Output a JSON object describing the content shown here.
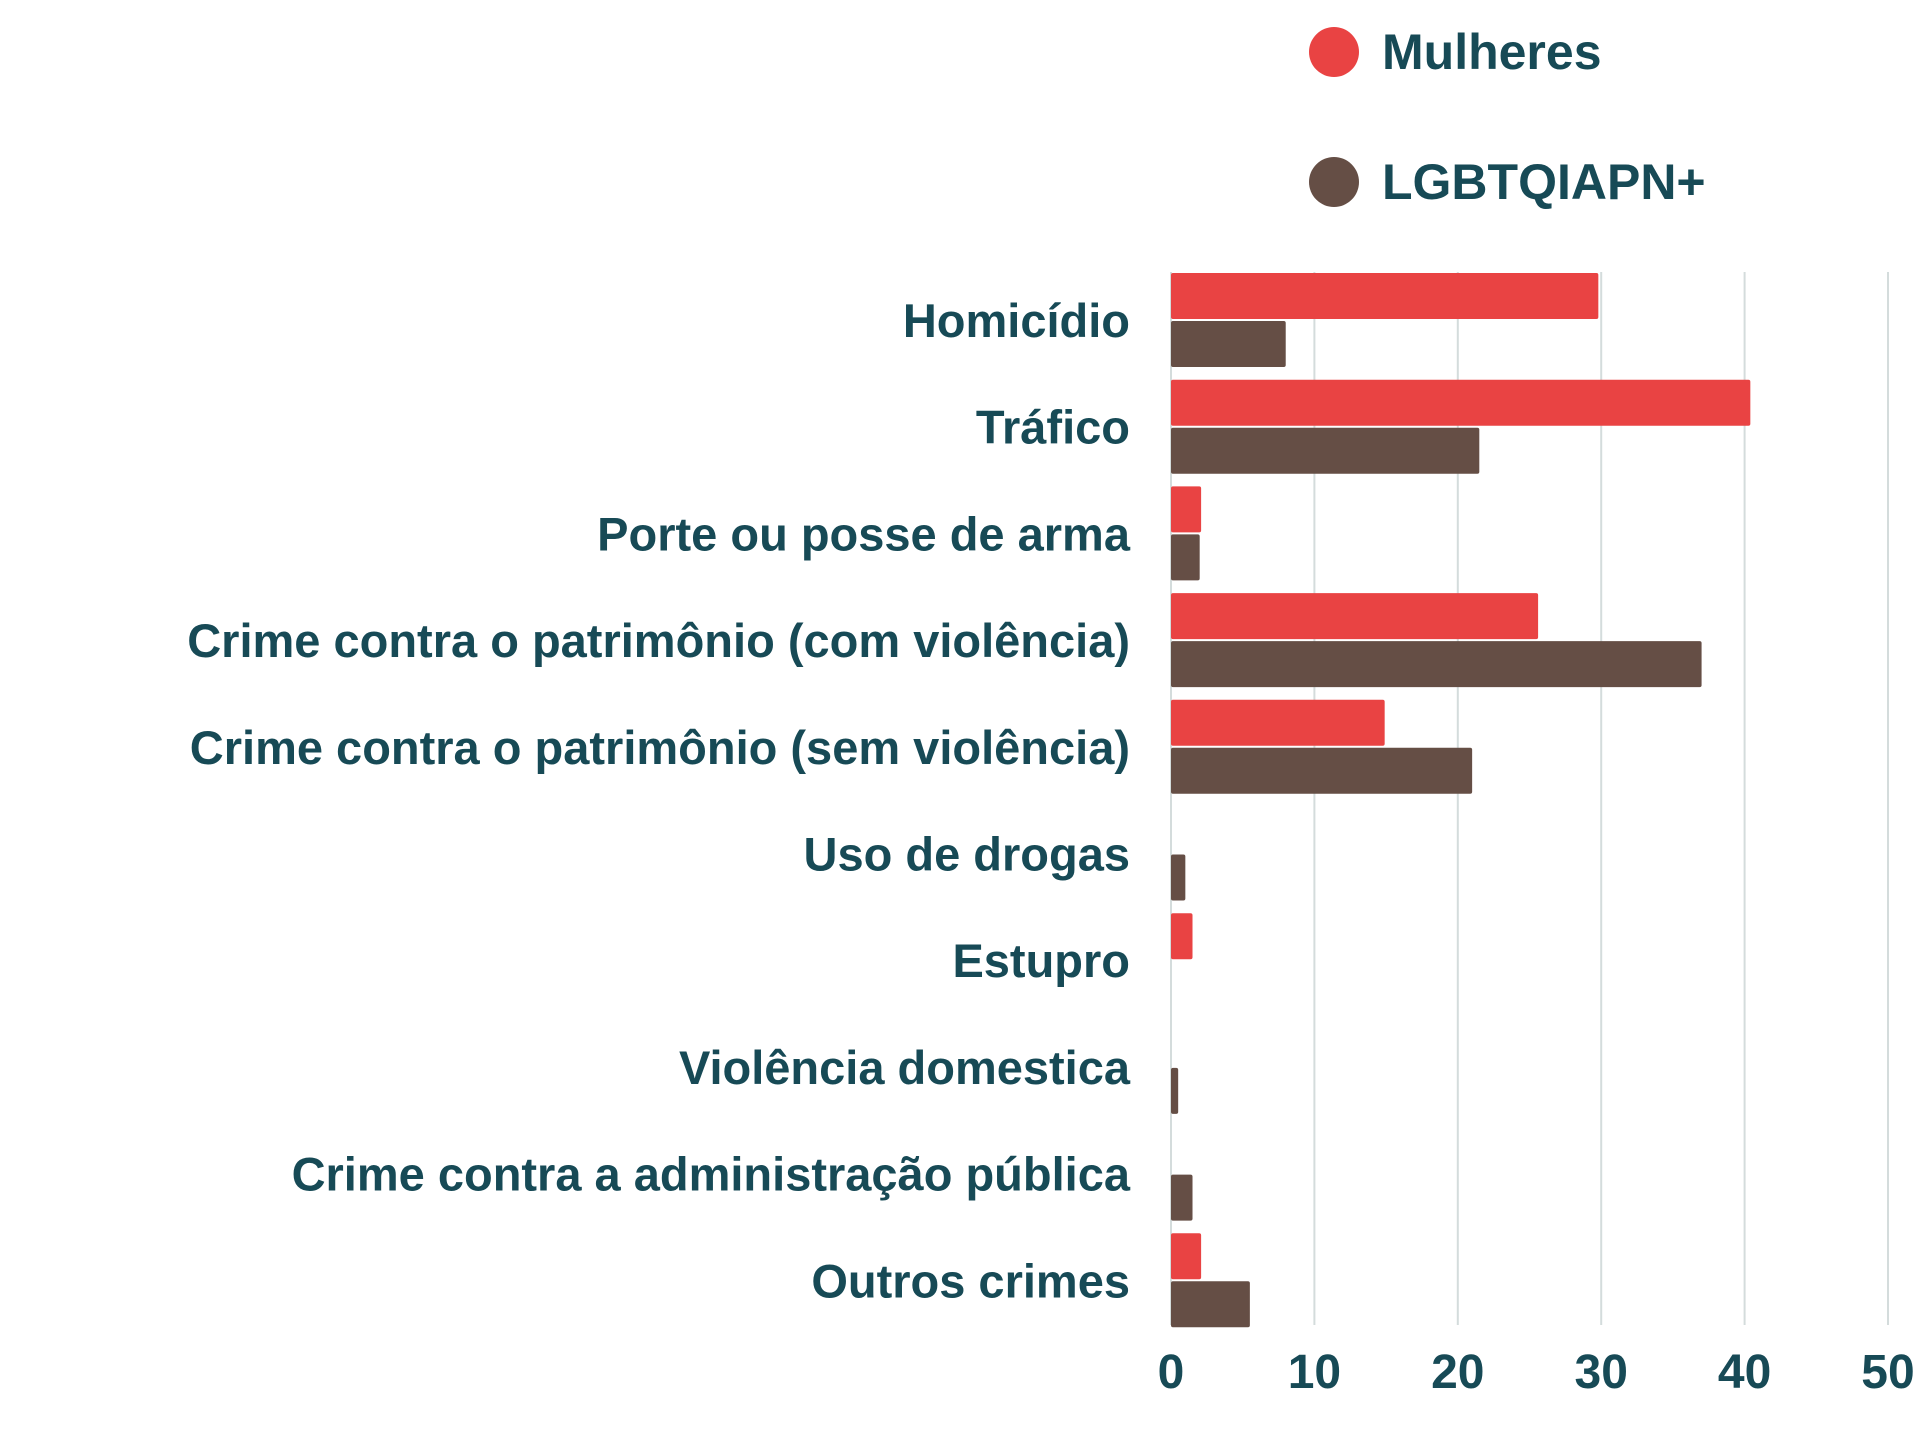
{
  "chart_data": {
    "type": "bar",
    "orientation": "horizontal",
    "categories": [
      "Homicídio",
      "Tráfico",
      "Porte ou posse de arma",
      "Crime contra o patrimônio (com violência)",
      "Crime contra o patrimônio (sem violência)",
      "Uso de drogas",
      "Estupro",
      "Violência domestica",
      "Crime contra a administração pública",
      "Outros crimes"
    ],
    "series": [
      {
        "name": "Mulheres",
        "color": "#e94343",
        "values": [
          29.8,
          40.4,
          2.1,
          25.6,
          14.9,
          0,
          1.5,
          0,
          0,
          2.1
        ]
      },
      {
        "name": "LGBTQIAPN+",
        "color": "#654e45",
        "values": [
          8.0,
          21.5,
          2.0,
          37.0,
          21.0,
          1.0,
          0,
          0.5,
          1.5,
          5.5
        ]
      }
    ],
    "xlim": [
      0,
      50
    ],
    "xticks": [
      0,
      10,
      20,
      30,
      40,
      50
    ],
    "grid": true,
    "legend_position": "top-right",
    "title": "",
    "xlabel": "",
    "ylabel": ""
  }
}
